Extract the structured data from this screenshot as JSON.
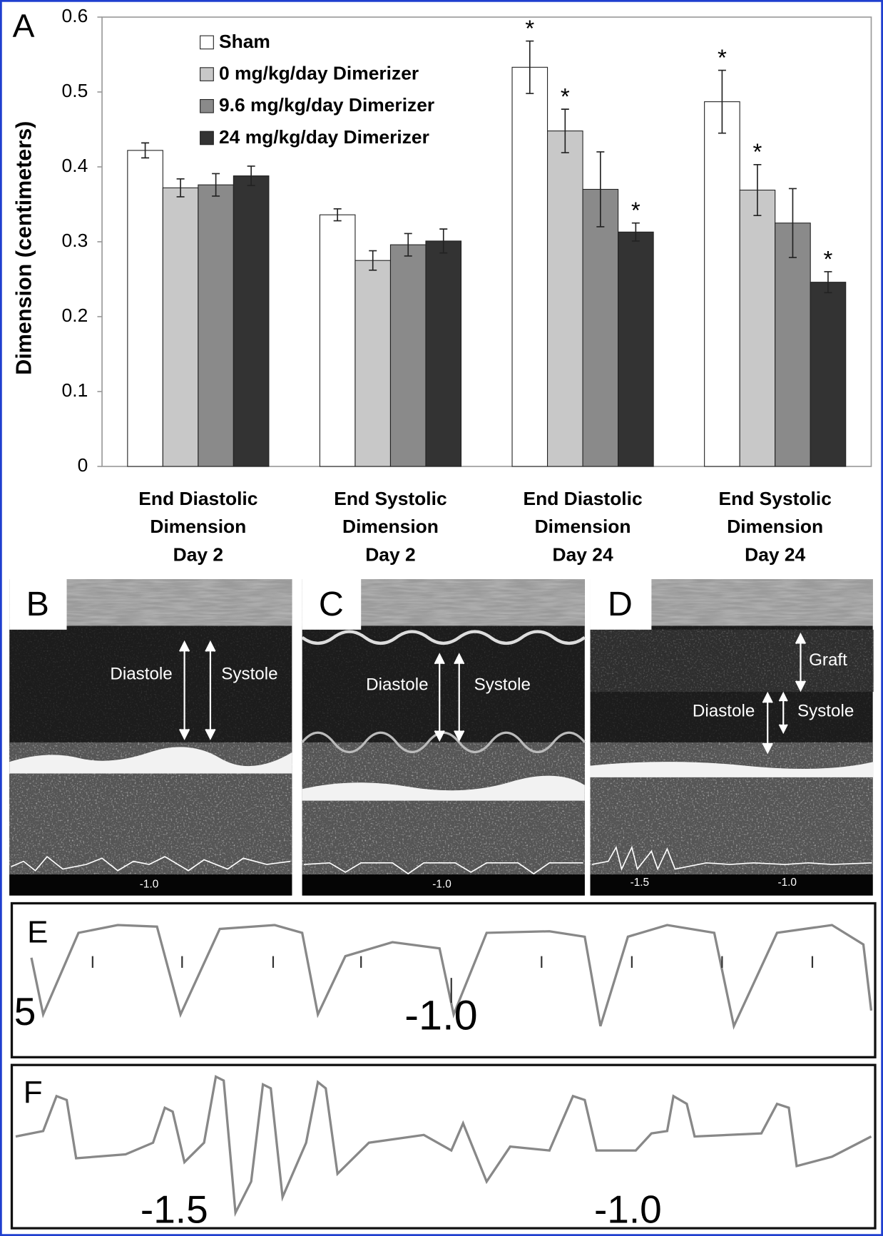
{
  "chart_data": {
    "type": "bar",
    "panel_label": "A",
    "y_label": "Dimension (centimeters)",
    "categories": [
      "End Diastolic\nDimension\nDay 2",
      "End Systolic\nDimension\nDay 2",
      "End Diastolic\nDimension\nDay 24",
      "End Systolic\nDimension\nDay 24"
    ],
    "series": [
      {
        "name": "Sham",
        "color": "#ffffff",
        "values": [
          0.422,
          0.336,
          0.533,
          0.487
        ],
        "errors": [
          0.01,
          0.008,
          0.035,
          0.042
        ],
        "markers": [
          null,
          null,
          "*",
          "*"
        ]
      },
      {
        "name": "0 mg/kg/day Dimerizer",
        "color": "#c8c8c8",
        "values": [
          0.372,
          0.275,
          0.448,
          0.369
        ],
        "errors": [
          0.012,
          0.013,
          0.029,
          0.034
        ],
        "markers": [
          null,
          null,
          "*",
          "*"
        ]
      },
      {
        "name": "9.6 mg/kg/day Dimerizer",
        "color": "#8a8a8a",
        "values": [
          0.376,
          0.296,
          0.37,
          0.325
        ],
        "errors": [
          0.015,
          0.015,
          0.05,
          0.046
        ],
        "markers": [
          null,
          null,
          null,
          null
        ]
      },
      {
        "name": "24 mg/kg/day Dimerizer",
        "color": "#333333",
        "values": [
          0.388,
          0.301,
          0.313,
          0.246
        ],
        "errors": [
          0.013,
          0.016,
          0.012,
          0.014
        ],
        "markers": [
          null,
          null,
          "*",
          "*"
        ]
      }
    ],
    "ylim": [
      0,
      0.6
    ],
    "yticks": [
      0,
      0.1,
      0.2,
      0.3,
      0.4,
      0.5,
      0.6
    ],
    "grid": false
  },
  "panels": [
    {
      "label": "B",
      "texts": [
        "Diastole",
        "Systole",
        "-1.0"
      ]
    },
    {
      "label": "C",
      "texts": [
        "Diastole",
        "Systole",
        "-1.0"
      ]
    },
    {
      "label": "D",
      "texts": [
        "Graft",
        "Diastole",
        "Systole",
        "-1.5",
        "-1.0"
      ]
    },
    {
      "label": "E",
      "texts": [
        "5",
        "-1.0"
      ]
    },
    {
      "label": "F",
      "texts": [
        "-1.5",
        "-1.0"
      ]
    }
  ]
}
